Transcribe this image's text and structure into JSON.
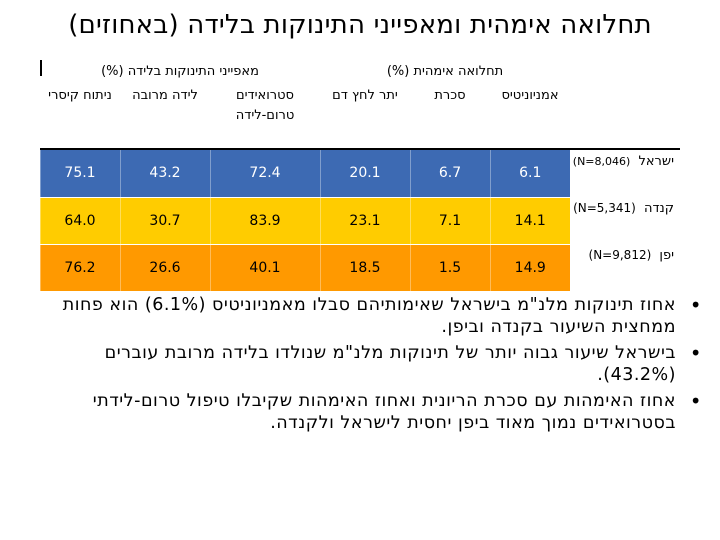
{
  "title": "תחלואה אימהית ומאפייני התינוקות בלידה (באחוזים)",
  "table": {
    "group_headers": {
      "infant": "מאפייני התינוקות בלידה (%)",
      "maternal": "תחלואה אימהית (%)"
    },
    "columns": {
      "chorio": "אמניוניטיס",
      "diabetes": "סכרת",
      "hypertension": "יתר לחץ דם",
      "steroids": "סטרואידים טרום-לידה",
      "multiple": "לידה מרובה",
      "cesarean": "ניתוח קיסרי"
    },
    "rows": [
      {
        "country": "ישראל",
        "n": "(N=8,046)",
        "chorio": "6.1",
        "diabetes": "6.7",
        "hypertension": "20.1",
        "steroids": "72.4",
        "multiple": "43.2",
        "cesarean": "75.1"
      },
      {
        "country": "קנדה",
        "n": "(N=5,341)",
        "chorio": "14.1",
        "diabetes": "7.1",
        "hypertension": "23.1",
        "steroids": "83.9",
        "multiple": "30.7",
        "cesarean": "64.0"
      },
      {
        "country": "יפן",
        "n": "(N=9,812)",
        "chorio": "14.9",
        "diabetes": "1.5",
        "hypertension": "18.5",
        "steroids": "40.1",
        "multiple": "26.6",
        "cesarean": "76.2"
      }
    ]
  },
  "colors": {
    "israel": "#3d6ab3",
    "canada": "#ffcc00",
    "japan": "#ff9900"
  },
  "bullets": [
    "אחוז תינוקות מלנ\"מ בישראל שאימותיהם סבלו מאמניוניטיס (6.1%) הוא פחות ממחצית השיעור בקנדה וביפן.",
    "בישראל שיעור גבוה יותר של תינוקות מלנ\"מ שנולדו בלידה מרובת עוברים (43.2%).",
    "אחוז האימהות עם סכרת הריונית ואחוז האימהות שקיבלו טיפול טרום-לידתי בסטרואידים נמוך מאוד ביפן יחסית לישראל ולקנדה."
  ]
}
